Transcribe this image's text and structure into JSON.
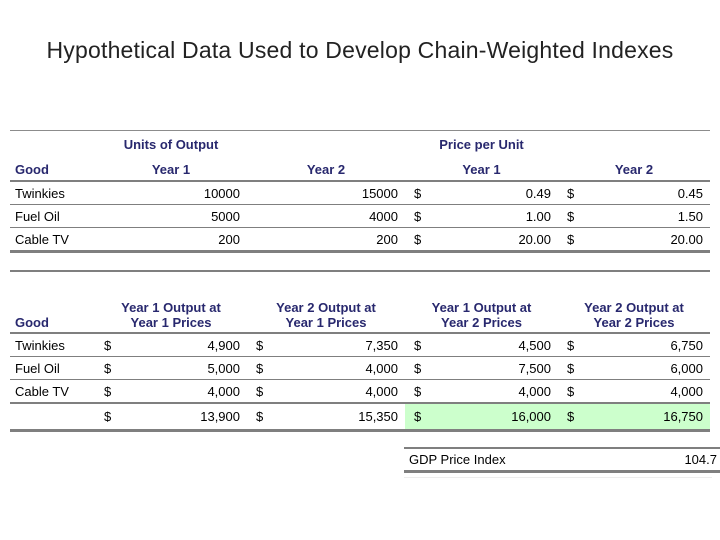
{
  "title": "Hypothetical Data Used to Develop Chain-Weighted Indexes",
  "currency": "$",
  "colors": {
    "header_navy": "#28286E",
    "highlight_green": "#CCFFCC",
    "rule_gray": "#7f7f7f"
  },
  "table1": {
    "group_headers": {
      "units": "Units of Output",
      "price": "Price per Unit"
    },
    "col_headers": {
      "good": "Good",
      "units_y1": "Year 1",
      "units_y2": "Year 2",
      "price_y1": "Year 1",
      "price_y2": "Year 2"
    },
    "rows": [
      {
        "good": "Twinkies",
        "units_y1": "10000",
        "units_y2": "15000",
        "price_y1": "0.49",
        "price_y2": "0.45"
      },
      {
        "good": "Fuel Oil",
        "units_y1": "5000",
        "units_y2": "4000",
        "price_y1": "1.00",
        "price_y2": "1.50"
      },
      {
        "good": "Cable TV",
        "units_y1": "200",
        "units_y2": "200",
        "price_y1": "20.00",
        "price_y2": "20.00"
      }
    ]
  },
  "table2": {
    "col_headers": {
      "good": "Good",
      "c1_line1": "Year 1 Output at",
      "c1_line2": "Year 1 Prices",
      "c2_line1": "Year 2 Output at",
      "c2_line2": "Year 1 Prices",
      "c3_line1": "Year 1 Output at",
      "c3_line2": "Year 2 Prices",
      "c4_line1": "Year 2 Output at",
      "c4_line2": "Year 2 Prices"
    },
    "rows": [
      {
        "good": "Twinkies",
        "v1": "4,900",
        "v2": "7,350",
        "v3": "4,500",
        "v4": "6,750"
      },
      {
        "good": "Fuel Oil",
        "v1": "5,000",
        "v2": "4,000",
        "v3": "7,500",
        "v4": "6,000"
      },
      {
        "good": "Cable TV",
        "v1": "4,000",
        "v2": "4,000",
        "v3": "4,000",
        "v4": "4,000"
      }
    ],
    "totals": {
      "v1": "13,900",
      "v2": "15,350",
      "v3": "16,000",
      "v4": "16,750"
    }
  },
  "gdp": {
    "label": "GDP Price Index",
    "value": "104.7"
  }
}
